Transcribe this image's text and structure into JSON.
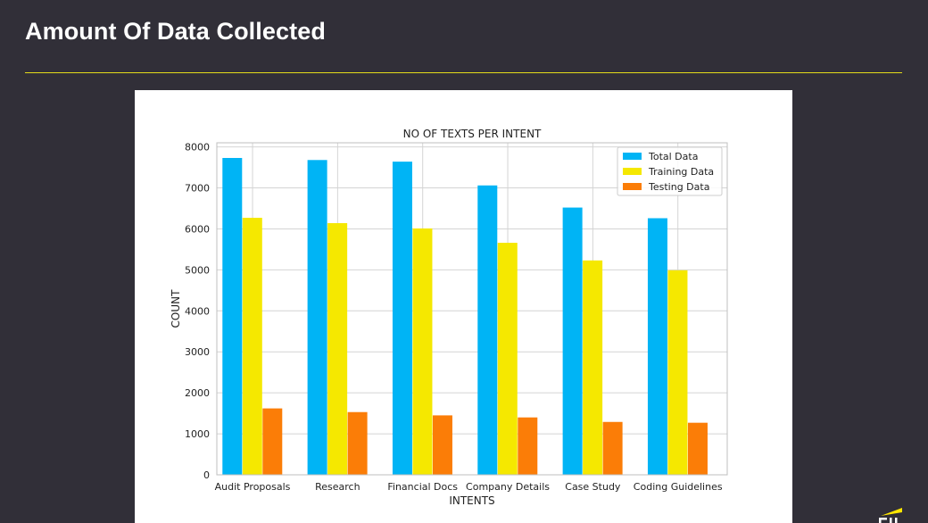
{
  "slide": {
    "title": "Amount Of Data Collected",
    "accent_color": "#e4dc1a",
    "background_color": "#312f38",
    "logo_icon": "ey-logo-icon"
  },
  "chart_data": {
    "type": "bar",
    "title": "NO OF TEXTS PER INTENT",
    "xlabel": "INTENTS",
    "ylabel": "COUNT",
    "ylim": [
      0,
      8100
    ],
    "yticks": [
      0,
      1000,
      2000,
      3000,
      4000,
      5000,
      6000,
      7000,
      8000
    ],
    "grid": true,
    "legend_position": "top-right",
    "categories": [
      "Audit Proposals",
      "Research",
      "Financial Docs",
      "Company Details",
      "Case Study",
      "Coding Guidelines"
    ],
    "series": [
      {
        "name": "Total Data",
        "color": "#00b4f5",
        "values": [
          7730,
          7680,
          7640,
          7060,
          6520,
          6260
        ]
      },
      {
        "name": "Training Data",
        "color": "#f5e800",
        "values": [
          6270,
          6140,
          6010,
          5660,
          5230,
          4990
        ]
      },
      {
        "name": "Testing Data",
        "color": "#fb7d07",
        "values": [
          1620,
          1530,
          1450,
          1400,
          1290,
          1270
        ]
      }
    ]
  }
}
